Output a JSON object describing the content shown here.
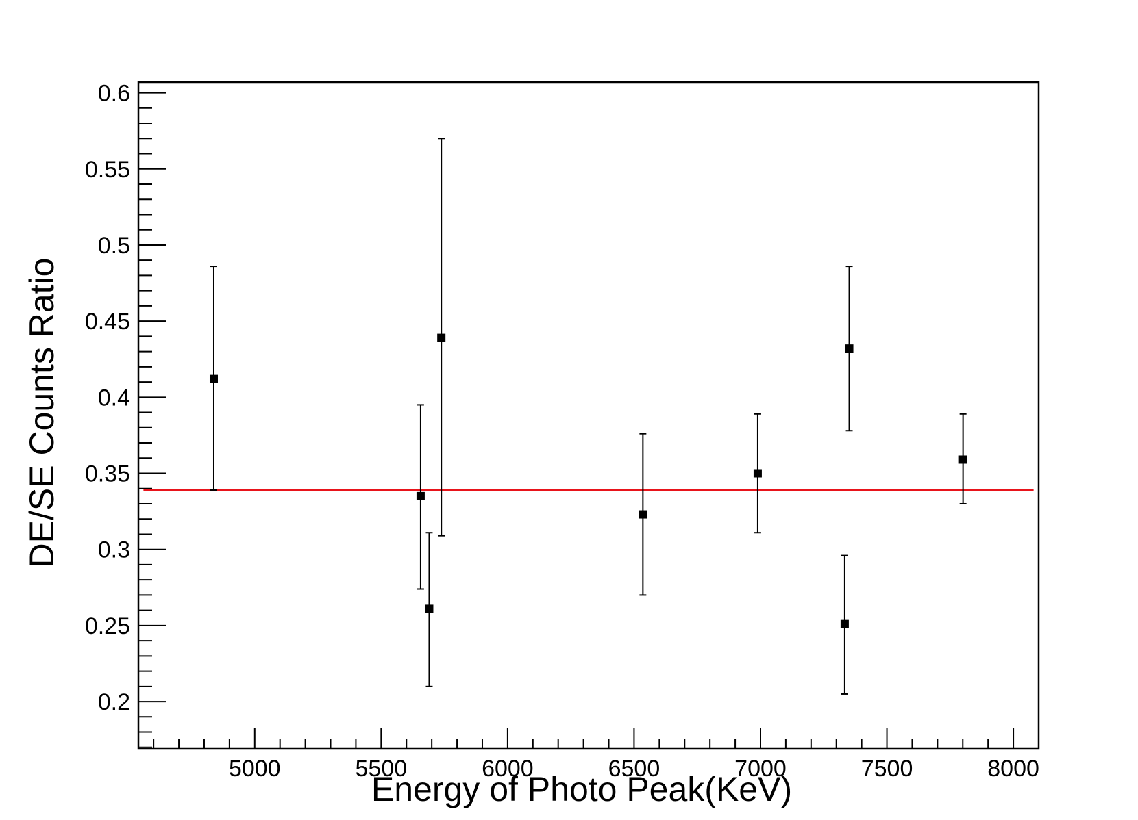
{
  "chart_data": {
    "type": "scatter",
    "title": "",
    "xlabel": "Energy of Photo Peak(KeV)",
    "ylabel": "DE/SE Counts Ratio",
    "xlim": [
      4540,
      8100
    ],
    "ylim": [
      0.169,
      0.607
    ],
    "xticks": [
      5000,
      5500,
      6000,
      6500,
      7000,
      7500,
      8000
    ],
    "xtick_labels": [
      "5000",
      "5500",
      "6000",
      "6500",
      "7000",
      "7500",
      "8000"
    ],
    "yticks": [
      0.2,
      0.25,
      0.3,
      0.35,
      0.4,
      0.45,
      0.5,
      0.55,
      0.6
    ],
    "ytick_labels": [
      "0.2",
      "0.25",
      "0.3",
      "0.35",
      "0.4",
      "0.45",
      "0.5",
      "0.55",
      "0.6"
    ],
    "x_minor_step": 100,
    "y_minor_step": 0.01,
    "grid": false,
    "legend": "none",
    "points": [
      {
        "x": 4838,
        "y": 0.412,
        "ylow": 0.339,
        "yhigh": 0.486
      },
      {
        "x": 5656,
        "y": 0.335,
        "ylow": 0.274,
        "yhigh": 0.395
      },
      {
        "x": 5690,
        "y": 0.261,
        "ylow": 0.21,
        "yhigh": 0.311
      },
      {
        "x": 5738,
        "y": 0.439,
        "ylow": 0.309,
        "yhigh": 0.57
      },
      {
        "x": 6535,
        "y": 0.323,
        "ylow": 0.27,
        "yhigh": 0.376
      },
      {
        "x": 6989,
        "y": 0.35,
        "ylow": 0.311,
        "yhigh": 0.389
      },
      {
        "x": 7333,
        "y": 0.251,
        "ylow": 0.205,
        "yhigh": 0.296
      },
      {
        "x": 7351,
        "y": 0.432,
        "ylow": 0.378,
        "yhigh": 0.486
      },
      {
        "x": 7801,
        "y": 0.359,
        "ylow": 0.33,
        "yhigh": 0.389
      }
    ],
    "fit_line": {
      "y": 0.339,
      "x_from": 4560,
      "x_to": 8080,
      "color": "#e8141b"
    },
    "marker_color": "#000000"
  }
}
